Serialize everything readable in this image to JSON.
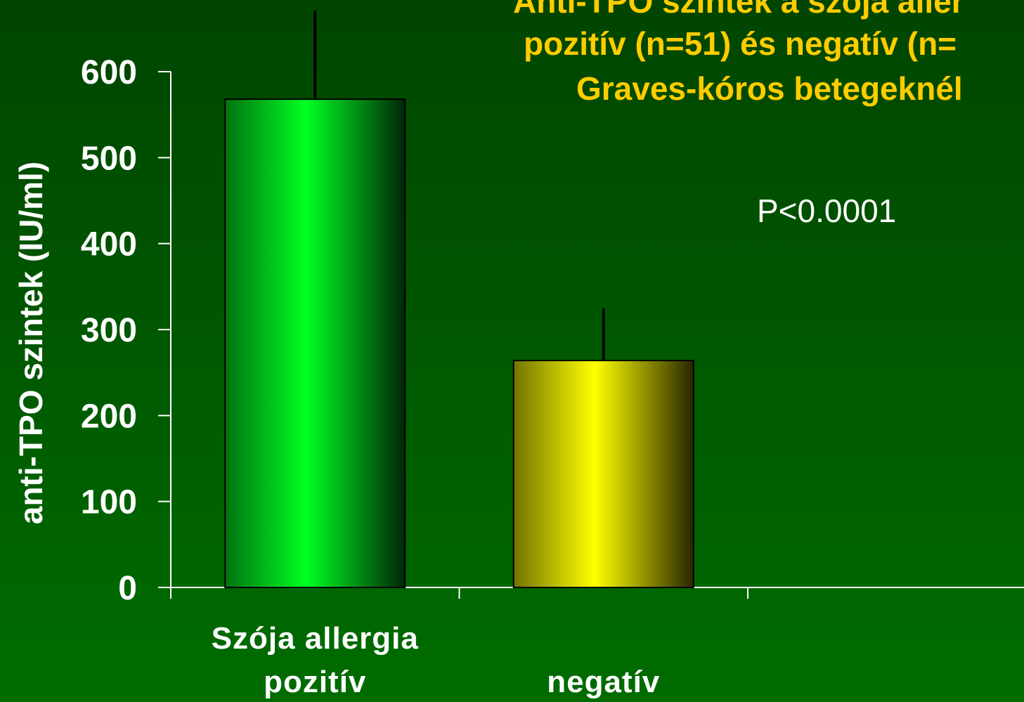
{
  "chart_data": {
    "type": "bar",
    "title_lines": [
      "Anti-TPO szintek a szója aller",
      "pozitív (n=51) és negatív (n=",
      "Graves-kóros betegeknél"
    ],
    "ylabel": "anti-TPO szintek (IU/ml)",
    "annotation": "P<0.0001",
    "categories": [
      [
        "Szója allergia",
        "pozitív"
      ],
      [
        "negatív"
      ]
    ],
    "values": [
      568,
      264
    ],
    "errors": [
      103,
      61
    ],
    "colors": [
      "#00ff22",
      "#ffff00"
    ],
    "ylim": [
      0,
      600
    ],
    "yticks": [
      0,
      100,
      200,
      300,
      400,
      500,
      600
    ]
  }
}
